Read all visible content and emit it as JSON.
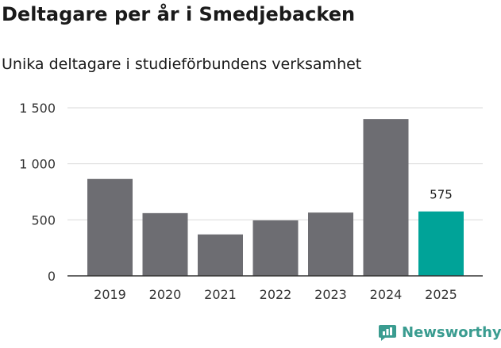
{
  "title": "Deltagare per år i Smedjebacken",
  "subtitle": "Unika deltagare i studieförbundens verksamhet",
  "brand": {
    "name": "Newsworthy",
    "icon": "bar-chart-logo-icon",
    "color": "#3a9c90"
  },
  "colors": {
    "bar": "#6d6d72",
    "highlight": "#00a398",
    "grid": "#d9d9d9",
    "axis": "#333333"
  },
  "chart_data": {
    "type": "bar",
    "categories": [
      "2019",
      "2020",
      "2021",
      "2022",
      "2023",
      "2024",
      "2025"
    ],
    "values": [
      865,
      560,
      370,
      495,
      565,
      1400,
      575
    ],
    "highlight_index": 6,
    "data_labels": [
      {
        "category": "2025",
        "text": "575"
      }
    ],
    "yticks": [
      0,
      500,
      1000,
      1500
    ],
    "ytick_labels": [
      "0",
      "500",
      "1 000",
      "1 500"
    ],
    "ylim": [
      0,
      1500
    ],
    "title": "Deltagare per år i Smedjebacken",
    "subtitle": "Unika deltagare i studieförbundens verksamhet",
    "xlabel": "",
    "ylabel": "",
    "grid": true
  }
}
